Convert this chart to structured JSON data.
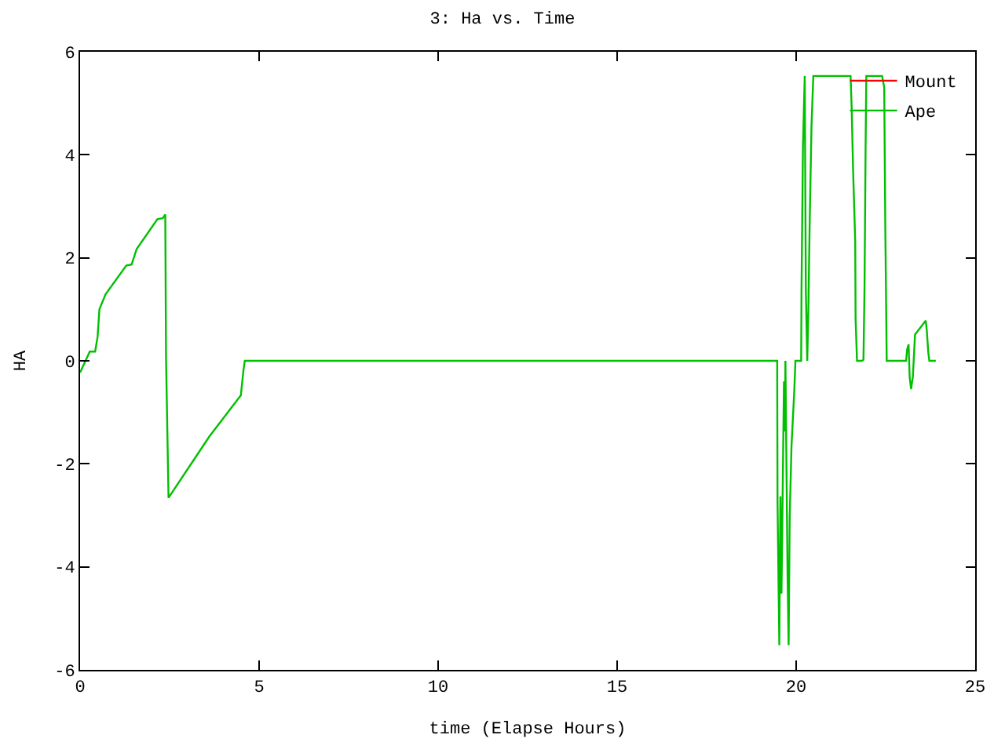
{
  "chart_data": {
    "type": "line",
    "title": "3: Ha vs. Time",
    "xlabel": "time (Elapse Hours)",
    "ylabel": "HA",
    "xlim": [
      0,
      25
    ],
    "xticks": [
      0,
      5,
      10,
      15,
      20,
      25
    ],
    "ylim": [
      -6,
      6
    ],
    "yticks": [
      -6,
      -4,
      -2,
      0,
      2,
      4,
      6
    ],
    "legend": "top right",
    "marker": "none",
    "line_style": "solid",
    "series": [
      {
        "name": "Mount",
        "color": "#ff0000"
      },
      {
        "name": "Ape",
        "color": "#00c000",
        "x": [
          0,
          0.27,
          0.42,
          0.49,
          0.54,
          0.71,
          1.29,
          1.44,
          1.58,
          2.16,
          2.31,
          2.38,
          2.4,
          2.47,
          3.61,
          4.49,
          4.56,
          4.6,
          19.47,
          19.48,
          19.53,
          19.56,
          19.59,
          19.66,
          19.69,
          19.7,
          19.76,
          19.79,
          19.82,
          19.87,
          19.95,
          19.98,
          20.14,
          20.15,
          20.19,
          20.24,
          20.27,
          20.31,
          20.34,
          20.38,
          20.43,
          20.48,
          21.52,
          21.55,
          21.59,
          21.65,
          21.66,
          21.7,
          21.84,
          21.88,
          21.91,
          21.94,
          21.96,
          22.4,
          22.46,
          22.49,
          22.53,
          23.07,
          23.1,
          23.14,
          23.17,
          23.21,
          23.26,
          23.32,
          23.43,
          23.62,
          23.65,
          23.69,
          23.72,
          23.9
        ],
        "values": [
          -0.23,
          0.18,
          0.18,
          0.47,
          1.0,
          1.29,
          1.85,
          1.87,
          2.17,
          2.75,
          2.77,
          2.84,
          0.1,
          -2.66,
          -1.47,
          -0.67,
          -0.2,
          0,
          0,
          -2.73,
          -5.52,
          -2.63,
          -4.52,
          -0.4,
          -1.37,
          0,
          -4.13,
          -5.52,
          -3.02,
          -1.66,
          -0.55,
          0,
          0,
          1.39,
          4.15,
          5.53,
          1.39,
          0,
          0.95,
          2.75,
          4.59,
          5.53,
          5.53,
          4.93,
          3.72,
          2.31,
          0.81,
          0,
          0,
          0.02,
          1.43,
          4.17,
          5.53,
          5.53,
          5.31,
          2.6,
          0,
          0,
          0.22,
          0.32,
          -0.31,
          -0.55,
          -0.31,
          0.51,
          0.61,
          0.78,
          0.58,
          0.17,
          0,
          0
        ]
      }
    ]
  }
}
